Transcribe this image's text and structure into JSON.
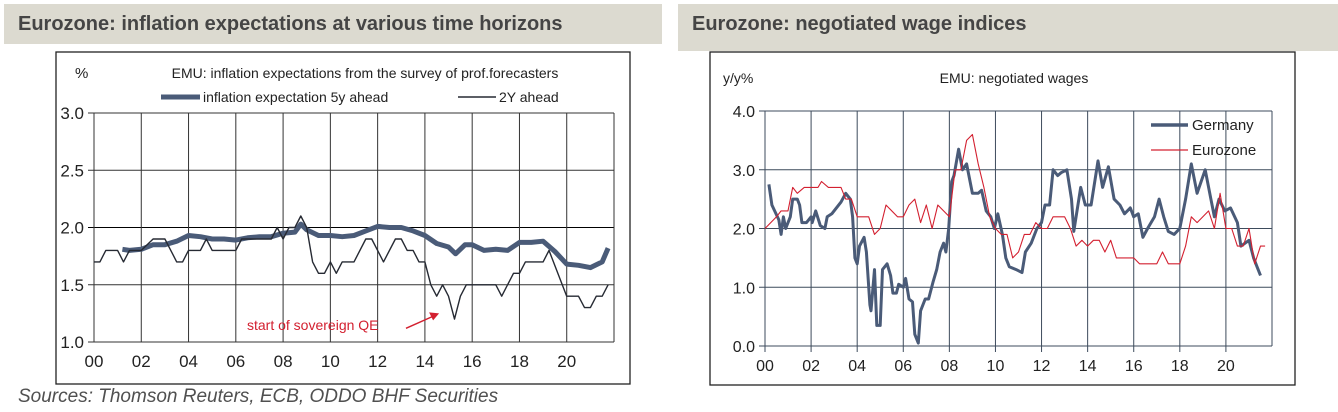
{
  "panels": {
    "left_title": "Eurozone: inflation expectations at various time horizons",
    "right_title": "Eurozone: negotiated wage indices",
    "sources": "Sources: Thomson Reuters, ECB, ODDO BHF Securities"
  },
  "colors": {
    "dark_blue": "#4a5b78",
    "black": "#262a33",
    "red": "#d32030",
    "banner": "#dcdad0"
  },
  "chart_data": [
    {
      "type": "line",
      "title": "EMU: inflation expectations from the survey of prof.forecasters",
      "ylabel": "%",
      "xlabel": "",
      "xlim": [
        2000,
        2022
      ],
      "ylim": [
        1.0,
        3.0
      ],
      "x_ticks": [
        "00",
        "02",
        "04",
        "06",
        "08",
        "10",
        "12",
        "14",
        "16",
        "18",
        "20"
      ],
      "y_ticks": [
        "1.0",
        "1.5",
        "2.0",
        "2.5",
        "3.0"
      ],
      "grid": true,
      "legend": "top",
      "annotation": {
        "text": "start of sovereign QE",
        "color": "#d32030",
        "arrow_to": [
          2014.6,
          1.25
        ]
      },
      "series": [
        {
          "name": "inflation expectation 5y ahead",
          "color": "#4a5b78",
          "style": "thick",
          "x": [
            2001.2,
            2001.5,
            2002,
            2002.5,
            2003,
            2003.5,
            2004,
            2004.5,
            2005,
            2005.5,
            2006,
            2006.5,
            2007,
            2007.5,
            2008,
            2008.5,
            2008.75,
            2009,
            2009.5,
            2010,
            2010.5,
            2011,
            2011.5,
            2012,
            2012.5,
            2013,
            2013.5,
            2014,
            2014.5,
            2015,
            2015.3,
            2015.7,
            2016,
            2016.5,
            2017,
            2017.5,
            2018,
            2018.5,
            2019,
            2019.5,
            2020,
            2020.5,
            2021,
            2021.5,
            2021.75
          ],
          "y": [
            1.81,
            1.8,
            1.81,
            1.85,
            1.85,
            1.88,
            1.93,
            1.92,
            1.9,
            1.9,
            1.89,
            1.91,
            1.92,
            1.92,
            1.95,
            1.96,
            2.03,
            1.98,
            1.93,
            1.93,
            1.92,
            1.93,
            1.97,
            2.01,
            2.0,
            2.0,
            1.97,
            1.93,
            1.86,
            1.83,
            1.77,
            1.85,
            1.85,
            1.8,
            1.81,
            1.8,
            1.87,
            1.87,
            1.88,
            1.79,
            1.68,
            1.67,
            1.65,
            1.7,
            1.82
          ]
        },
        {
          "name": "2Y ahead",
          "color": "#262a33",
          "style": "thin",
          "x": [
            2000,
            2000.25,
            2000.5,
            2001,
            2001.25,
            2001.5,
            2002,
            2002.5,
            2003,
            2003.25,
            2003.5,
            2003.75,
            2004,
            2004.5,
            2004.75,
            2005,
            2006,
            2006.25,
            2007.5,
            2007.75,
            2008,
            2008.25,
            2008.5,
            2008.75,
            2009,
            2009.25,
            2009.5,
            2009.75,
            2010,
            2010.25,
            2010.5,
            2011,
            2011.5,
            2011.75,
            2012,
            2012.25,
            2012.75,
            2013,
            2013.25,
            2013.5,
            2013.75,
            2014,
            2014.25,
            2014.5,
            2014.75,
            2015,
            2015.25,
            2015.5,
            2015.75,
            2017,
            2017.25,
            2017.75,
            2018,
            2018.25,
            2019,
            2019.25,
            2020,
            2020.5,
            2020.75,
            2021,
            2021.25,
            2021.5,
            2021.75
          ],
          "y": [
            1.7,
            1.7,
            1.8,
            1.8,
            1.7,
            1.8,
            1.8,
            1.9,
            1.9,
            1.8,
            1.7,
            1.7,
            1.8,
            1.8,
            1.9,
            1.8,
            1.8,
            1.9,
            1.9,
            2.0,
            1.9,
            2.0,
            2.0,
            2.1,
            2.0,
            1.7,
            1.6,
            1.6,
            1.7,
            1.6,
            1.7,
            1.7,
            1.9,
            1.9,
            1.8,
            1.7,
            1.9,
            1.9,
            1.8,
            1.8,
            1.7,
            1.7,
            1.5,
            1.4,
            1.5,
            1.4,
            1.2,
            1.4,
            1.5,
            1.5,
            1.4,
            1.6,
            1.6,
            1.7,
            1.7,
            1.8,
            1.4,
            1.4,
            1.3,
            1.3,
            1.4,
            1.4,
            1.5
          ]
        }
      ]
    },
    {
      "type": "line",
      "title": "EMU: negotiated wages",
      "ylabel": "y/y%",
      "xlabel": "",
      "xlim": [
        2000,
        2022
      ],
      "ylim": [
        0.0,
        4.0
      ],
      "x_ticks": [
        "00",
        "02",
        "04",
        "06",
        "08",
        "10",
        "12",
        "14",
        "16",
        "18",
        "20"
      ],
      "y_ticks": [
        "0.0",
        "1.0",
        "2.0",
        "3.0",
        "4.0"
      ],
      "grid": true,
      "legend": "top-right",
      "series": [
        {
          "name": "Germany",
          "color": "#4a5b78",
          "style": "thick",
          "x": [
            2000.17,
            2000.3,
            2000.6,
            2000.7,
            2000.8,
            2000.9,
            2001.1,
            2001.2,
            2001.4,
            2001.5,
            2001.6,
            2001.8,
            2002.0,
            2002.05,
            2002.2,
            2002.4,
            2002.6,
            2002.7,
            2002.9,
            2003.1,
            2003.3,
            2003.5,
            2003.7,
            2003.8,
            2003.9,
            2004.0,
            2004.1,
            2004.3,
            2004.4,
            2004.55,
            2004.6,
            2004.75,
            2004.85,
            2005.0,
            2005.1,
            2005.3,
            2005.45,
            2005.55,
            2005.7,
            2005.8,
            2006.0,
            2006.1,
            2006.25,
            2006.4,
            2006.5,
            2006.65,
            2006.75,
            2006.95,
            2007.1,
            2007.3,
            2007.45,
            2007.6,
            2007.75,
            2007.85,
            2007.97,
            2008.1,
            2008.2,
            2008.4,
            2008.57,
            2008.75,
            2009.0,
            2009.25,
            2009.4,
            2009.6,
            2009.8,
            2009.95,
            2010.1,
            2010.3,
            2010.45,
            2010.6,
            2010.9,
            2011.15,
            2011.3,
            2011.55,
            2011.8,
            2012.0,
            2012.15,
            2012.35,
            2012.5,
            2012.7,
            2012.85,
            2013.1,
            2013.3,
            2013.4,
            2013.7,
            2013.9,
            2014.15,
            2014.45,
            2014.65,
            2014.9,
            2015.15,
            2015.4,
            2015.6,
            2015.85,
            2016.0,
            2016.2,
            2016.4,
            2016.6,
            2016.9,
            2017.1,
            2017.3,
            2017.5,
            2017.75,
            2018.0,
            2018.25,
            2018.5,
            2018.75,
            2019.1,
            2019.35,
            2019.5,
            2019.7,
            2019.95,
            2020.2,
            2020.5,
            2020.65,
            2021.0,
            2021.2,
            2021.35,
            2021.5
          ],
          "y": [
            2.75,
            2.4,
            2.15,
            1.9,
            2.2,
            2.0,
            2.2,
            2.5,
            2.5,
            2.4,
            2.1,
            2.1,
            2.2,
            2.1,
            2.3,
            2.05,
            2.0,
            2.2,
            2.25,
            2.35,
            2.45,
            2.6,
            2.5,
            2.2,
            1.5,
            1.4,
            1.7,
            1.85,
            1.6,
            0.7,
            0.6,
            1.3,
            0.35,
            0.35,
            1.3,
            1.4,
            1.2,
            0.9,
            0.9,
            1.05,
            1.0,
            1.15,
            0.8,
            0.75,
            0.2,
            0.05,
            0.6,
            0.8,
            0.8,
            1.1,
            1.3,
            1.6,
            1.75,
            1.6,
            2.0,
            2.8,
            2.9,
            3.35,
            3.0,
            3.1,
            2.6,
            2.6,
            2.65,
            2.3,
            2.2,
            2.0,
            2.25,
            1.9,
            1.5,
            1.35,
            1.3,
            1.25,
            1.6,
            1.75,
            2.0,
            2.1,
            2.4,
            2.4,
            3.0,
            2.9,
            2.95,
            3.0,
            2.5,
            1.95,
            2.7,
            2.4,
            2.4,
            3.15,
            2.7,
            3.05,
            2.5,
            2.4,
            2.25,
            2.35,
            2.2,
            2.25,
            1.85,
            2.0,
            2.2,
            2.5,
            2.2,
            1.95,
            1.9,
            2.0,
            2.5,
            3.1,
            2.6,
            3.0,
            2.5,
            2.2,
            2.5,
            2.3,
            2.35,
            2.1,
            1.7,
            1.8,
            1.5,
            1.35,
            1.2
          ]
        },
        {
          "name": "Eurozone",
          "color": "#d32030",
          "style": "thin",
          "x": [
            2000.0,
            2000.5,
            2000.7,
            2001.0,
            2001.2,
            2001.4,
            2001.7,
            2002.3,
            2002.45,
            2002.75,
            2003.3,
            2003.5,
            2003.75,
            2004.0,
            2004.5,
            2004.75,
            2005.0,
            2005.25,
            2005.75,
            2006.0,
            2006.25,
            2006.5,
            2006.75,
            2007.0,
            2007.25,
            2007.5,
            2007.75,
            2008.0,
            2008.25,
            2008.5,
            2008.75,
            2009.0,
            2009.25,
            2009.5,
            2009.75,
            2010.0,
            2010.25,
            2010.5,
            2010.75,
            2011.0,
            2011.25,
            2011.5,
            2011.75,
            2012.0,
            2012.25,
            2012.5,
            2013.0,
            2013.25,
            2013.5,
            2013.75,
            2014.0,
            2014.25,
            2014.5,
            2014.75,
            2015.0,
            2015.25,
            2016.0,
            2016.25,
            2017.0,
            2017.25,
            2017.5,
            2018.0,
            2018.25,
            2018.5,
            2018.75,
            2019.25,
            2019.5,
            2019.75,
            2020.0,
            2020.25,
            2020.5,
            2020.75,
            2021.0,
            2021.25,
            2021.5,
            2021.7
          ],
          "y": [
            2.0,
            2.2,
            2.3,
            2.3,
            2.7,
            2.6,
            2.7,
            2.7,
            2.8,
            2.7,
            2.7,
            2.5,
            2.5,
            2.2,
            2.2,
            1.9,
            2.0,
            2.4,
            2.2,
            2.2,
            2.4,
            2.5,
            2.1,
            2.4,
            2.0,
            2.4,
            2.3,
            2.2,
            3.0,
            3.0,
            3.5,
            3.6,
            3.1,
            2.7,
            2.2,
            2.0,
            1.9,
            1.9,
            1.5,
            1.6,
            1.9,
            1.9,
            2.1,
            2.0,
            2.0,
            2.2,
            2.2,
            2.0,
            1.7,
            1.8,
            1.7,
            1.8,
            1.8,
            1.6,
            1.8,
            1.5,
            1.5,
            1.4,
            1.4,
            1.6,
            1.4,
            1.4,
            1.7,
            2.2,
            2.1,
            2.3,
            2.0,
            2.6,
            2.0,
            2.0,
            1.7,
            1.7,
            2.0,
            1.4,
            1.7,
            1.7
          ]
        }
      ]
    }
  ]
}
